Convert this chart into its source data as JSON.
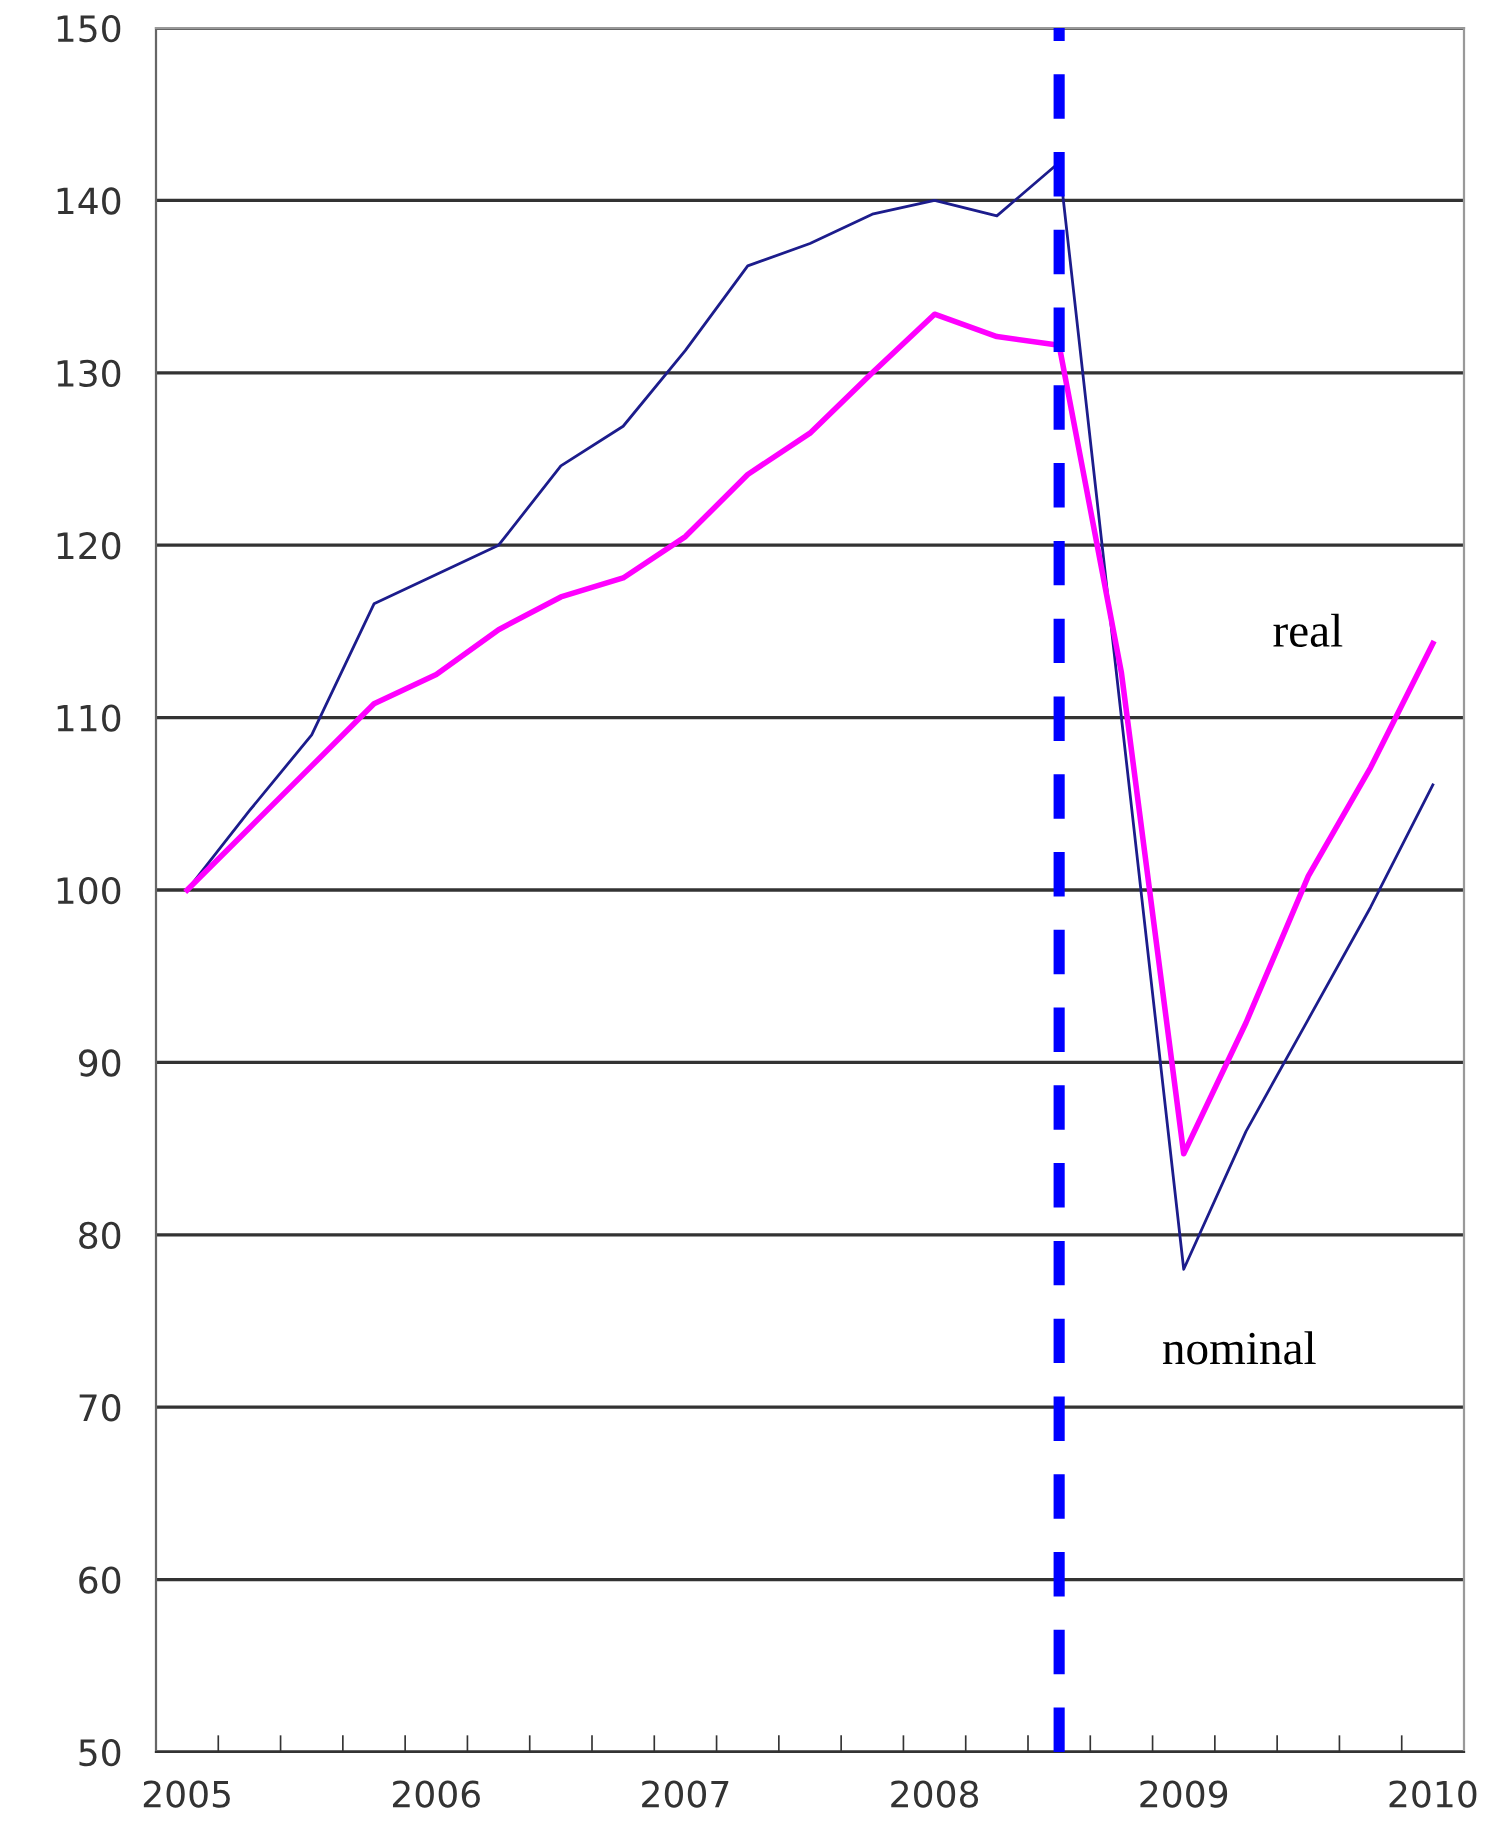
{
  "chart_data": {
    "type": "line",
    "x": [
      2005,
      2005.25,
      2005.5,
      2005.75,
      2006,
      2006.25,
      2006.5,
      2006.75,
      2007,
      2007.25,
      2007.5,
      2007.75,
      2008,
      2008.25,
      2008.5,
      2008.75,
      2009,
      2009.25,
      2009.5,
      2009.75,
      2010
    ],
    "series": [
      {
        "name": "nominal",
        "color": "#1c1c8c",
        "values": [
          100,
          104.6,
          109.0,
          116.6,
          118.3,
          120.0,
          124.6,
          126.9,
          131.3,
          136.2,
          137.5,
          139.2,
          140.0,
          139.1,
          142.2,
          110.0,
          78.0,
          86.0,
          92.5,
          99.0,
          106.1
        ]
      },
      {
        "name": "real",
        "color": "#ff00ff",
        "values": [
          100,
          103.6,
          107.2,
          110.8,
          112.5,
          115.1,
          117.0,
          118.1,
          120.5,
          124.1,
          126.5,
          130.0,
          133.4,
          132.1,
          131.6,
          112.6,
          84.7,
          92.3,
          100.8,
          107.1,
          114.3
        ]
      }
    ],
    "xlim": [
      2004.875,
      2010.125
    ],
    "xticks": [
      {
        "value": 2004.875,
        "label": null
      },
      {
        "value": 2005.125,
        "label": null
      },
      {
        "value": 2005.375,
        "label": null
      },
      {
        "value": 2005.625,
        "label": null
      },
      {
        "value": 2005.875,
        "label": null
      },
      {
        "value": 2006.125,
        "label": null
      },
      {
        "value": 2006.375,
        "label": null
      },
      {
        "value": 2006.625,
        "label": null
      },
      {
        "value": 2006.875,
        "label": null
      },
      {
        "value": 2007.125,
        "label": null
      },
      {
        "value": 2007.375,
        "label": null
      },
      {
        "value": 2007.625,
        "label": null
      },
      {
        "value": 2007.875,
        "label": null
      },
      {
        "value": 2008.125,
        "label": null
      },
      {
        "value": 2008.375,
        "label": null
      },
      {
        "value": 2008.625,
        "label": null
      },
      {
        "value": 2008.875,
        "label": null
      },
      {
        "value": 2009.125,
        "label": null
      },
      {
        "value": 2009.375,
        "label": null
      },
      {
        "value": 2009.625,
        "label": null
      },
      {
        "value": 2009.875,
        "label": null
      },
      {
        "value": 2010.125,
        "label": null
      },
      2005,
      2006,
      2007,
      2008,
      2009,
      2010
    ],
    "ylim": [
      50,
      150
    ],
    "yticks": [
      50,
      60,
      70,
      80,
      90,
      100,
      110,
      120,
      130,
      140,
      150
    ],
    "grid": "y",
    "legend": false,
    "marker": "none",
    "line_style": "solid",
    "ref_lines": [
      {
        "axis": "x",
        "value": 2008.5,
        "color": "#0000ff",
        "line_style": "dashed"
      }
    ]
  }
}
